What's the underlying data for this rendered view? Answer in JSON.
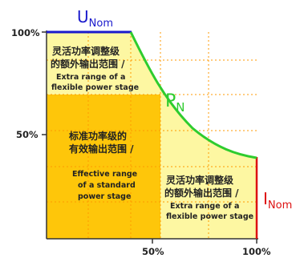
{
  "colors": {
    "upper_region": "#fdf7a2",
    "standard_region": "#fec60a",
    "power_curve": "#2ecc2e",
    "voltage_line": "#1a1acc",
    "current_line": "#dd1111",
    "axes": "#333333",
    "grid": "#ff9900"
  },
  "labels": {
    "voltage_main": "U",
    "voltage_sub": "Nom",
    "power_main": "P",
    "power_sub": "N",
    "current_main": "I",
    "current_sub": "Nom",
    "y_100": "100%",
    "y_50": "50%",
    "x_50": "50%",
    "x_100": "100%"
  },
  "regions": {
    "upper_extra": {
      "cn_line1": "灵活功率调整级",
      "cn_line2": "的额外输出范围 /",
      "en_line1": "Extra range of a",
      "en_line2": "flexible power stage"
    },
    "standard": {
      "cn_line1": "标准功率级的",
      "cn_line2": "有效输出范围 /",
      "en_line1": "Effective range",
      "en_line2": "of a standard",
      "en_line3": "power stage"
    },
    "right_extra": {
      "cn_line1": "灵活功率调整级",
      "cn_line2": "的额外输出范围 /",
      "en_line1": "Extra range of a",
      "en_line2": "flexible power stage"
    }
  }
}
